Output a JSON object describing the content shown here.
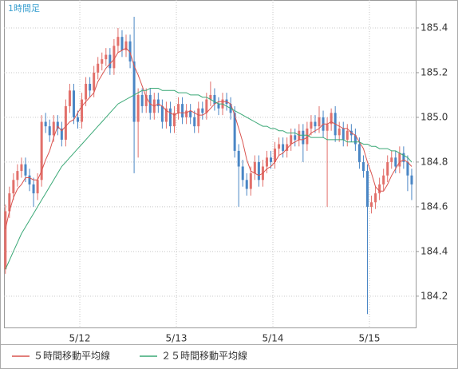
{
  "chart_data": {
    "type": "candlestick",
    "label": "1時間足",
    "x": [
      0,
      1,
      2,
      3,
      4,
      5,
      6,
      7,
      8,
      9,
      10,
      11,
      12,
      13,
      14,
      15,
      16,
      17,
      18,
      19,
      20,
      21,
      22,
      23,
      24,
      25,
      26,
      27,
      28,
      29,
      30,
      31,
      32,
      33,
      34,
      35,
      36,
      37,
      38,
      39,
      40,
      41,
      42,
      43,
      44,
      45,
      46,
      47,
      48,
      49,
      50,
      51,
      52,
      53,
      54,
      55,
      56,
      57,
      58,
      59,
      60,
      61,
      62,
      63,
      64,
      65,
      66,
      67,
      68,
      69,
      70,
      71,
      72,
      73,
      74,
      75,
      76,
      77,
      78,
      79,
      80,
      81,
      82,
      83,
      84,
      85,
      86,
      87,
      88,
      89,
      90,
      91,
      92,
      93,
      94,
      95,
      96,
      97,
      98,
      99,
      100,
      101
    ],
    "candles": [
      [
        184.32,
        184.61,
        184.3,
        184.58
      ],
      [
        184.58,
        184.69,
        184.55,
        184.66
      ],
      [
        184.66,
        184.75,
        184.63,
        184.72
      ],
      [
        184.72,
        184.79,
        184.69,
        184.76
      ],
      [
        184.76,
        184.82,
        184.73,
        184.79
      ],
      [
        184.79,
        184.82,
        184.71,
        184.74
      ],
      [
        184.74,
        184.77,
        184.67,
        184.7
      ],
      [
        184.7,
        184.73,
        184.6,
        184.66
      ],
      [
        184.66,
        184.75,
        184.63,
        184.72
      ],
      [
        184.72,
        185.01,
        184.69,
        184.98
      ],
      [
        184.98,
        185.02,
        184.93,
        184.96
      ],
      [
        184.96,
        184.99,
        184.89,
        184.92
      ],
      [
        184.92,
        185.01,
        184.89,
        184.98
      ],
      [
        184.98,
        185.01,
        184.92,
        184.95
      ],
      [
        184.95,
        184.98,
        184.87,
        184.9
      ],
      [
        184.9,
        185.08,
        184.87,
        185.05
      ],
      [
        185.05,
        185.15,
        185.02,
        185.12
      ],
      [
        185.12,
        185.15,
        184.97,
        185.0
      ],
      [
        185.0,
        185.03,
        184.95,
        184.98
      ],
      [
        184.98,
        185.11,
        184.95,
        185.08
      ],
      [
        185.08,
        185.18,
        185.05,
        185.15
      ],
      [
        185.15,
        185.18,
        185.09,
        185.12
      ],
      [
        185.12,
        185.23,
        185.09,
        185.2
      ],
      [
        185.2,
        185.27,
        185.17,
        185.24
      ],
      [
        185.24,
        185.29,
        185.21,
        185.26
      ],
      [
        185.26,
        185.31,
        185.23,
        185.28
      ],
      [
        185.28,
        185.31,
        185.19,
        185.22
      ],
      [
        185.22,
        185.35,
        185.19,
        185.32
      ],
      [
        185.32,
        185.4,
        185.29,
        185.36
      ],
      [
        185.36,
        185.39,
        185.27,
        185.3
      ],
      [
        185.3,
        185.37,
        185.27,
        185.34
      ],
      [
        185.34,
        185.37,
        185.22,
        185.25
      ],
      [
        185.25,
        185.45,
        184.75,
        184.98
      ],
      [
        184.98,
        185.13,
        184.82,
        185.1
      ],
      [
        185.1,
        185.13,
        185.02,
        185.05
      ],
      [
        185.05,
        185.13,
        185.02,
        185.1
      ],
      [
        185.1,
        185.13,
        184.99,
        185.02
      ],
      [
        185.02,
        185.11,
        184.99,
        185.08
      ],
      [
        185.08,
        185.11,
        185.02,
        185.05
      ],
      [
        185.05,
        185.08,
        184.95,
        184.98
      ],
      [
        184.98,
        185.07,
        184.95,
        185.04
      ],
      [
        185.04,
        185.07,
        184.93,
        184.96
      ],
      [
        184.96,
        185.05,
        184.93,
        185.02
      ],
      [
        185.02,
        185.09,
        184.99,
        185.06
      ],
      [
        185.06,
        185.09,
        184.97,
        185.0
      ],
      [
        185.0,
        185.06,
        184.97,
        185.03
      ],
      [
        185.03,
        185.06,
        184.97,
        185.0
      ],
      [
        185.0,
        185.03,
        184.93,
        184.96
      ],
      [
        184.96,
        185.07,
        184.93,
        185.04
      ],
      [
        185.04,
        185.07,
        184.99,
        185.02
      ],
      [
        185.02,
        185.11,
        184.99,
        185.08
      ],
      [
        185.08,
        185.16,
        185.05,
        185.1
      ],
      [
        185.1,
        185.13,
        185.03,
        185.06
      ],
      [
        185.06,
        185.09,
        185.01,
        185.04
      ],
      [
        185.04,
        185.11,
        185.01,
        185.08
      ],
      [
        185.08,
        185.11,
        185.03,
        185.06
      ],
      [
        185.06,
        185.09,
        184.99,
        185.02
      ],
      [
        185.02,
        185.05,
        184.82,
        184.85
      ],
      [
        184.85,
        184.88,
        184.6,
        184.78
      ],
      [
        184.78,
        184.81,
        184.69,
        184.72
      ],
      [
        184.72,
        184.75,
        184.65,
        184.68
      ],
      [
        184.68,
        184.78,
        184.65,
        184.75
      ],
      [
        184.75,
        184.83,
        184.72,
        184.8
      ],
      [
        184.8,
        184.83,
        184.69,
        184.72
      ],
      [
        184.72,
        184.81,
        184.69,
        184.78
      ],
      [
        184.78,
        184.85,
        184.75,
        184.82
      ],
      [
        184.82,
        184.85,
        184.77,
        184.8
      ],
      [
        184.8,
        184.89,
        184.77,
        184.86
      ],
      [
        184.86,
        184.91,
        184.83,
        184.88
      ],
      [
        184.88,
        184.91,
        184.82,
        184.85
      ],
      [
        184.85,
        184.91,
        184.82,
        184.88
      ],
      [
        184.88,
        184.95,
        184.85,
        184.92
      ],
      [
        184.92,
        184.95,
        184.87,
        184.9
      ],
      [
        184.9,
        184.97,
        184.87,
        184.94
      ],
      [
        184.94,
        184.97,
        184.8,
        184.88
      ],
      [
        184.88,
        184.98,
        184.85,
        184.95
      ],
      [
        184.95,
        185.01,
        184.92,
        184.98
      ],
      [
        184.98,
        185.01,
        184.93,
        184.96
      ],
      [
        184.96,
        185.05,
        184.93,
        185.0
      ],
      [
        185.0,
        185.03,
        184.91,
        184.94
      ],
      [
        184.94,
        185.0,
        184.6,
        184.97
      ],
      [
        184.97,
        185.04,
        184.94,
        185.02
      ],
      [
        185.02,
        185.05,
        184.89,
        184.92
      ],
      [
        184.92,
        184.98,
        184.89,
        184.95
      ],
      [
        184.95,
        184.98,
        184.87,
        184.9
      ],
      [
        184.9,
        184.97,
        184.87,
        184.94
      ],
      [
        184.94,
        184.97,
        184.89,
        184.92
      ],
      [
        184.92,
        184.95,
        184.85,
        184.88
      ],
      [
        184.88,
        184.91,
        184.77,
        184.8
      ],
      [
        184.8,
        184.83,
        184.73,
        184.76
      ],
      [
        184.76,
        184.79,
        184.12,
        184.6
      ],
      [
        184.6,
        184.65,
        184.57,
        184.62
      ],
      [
        184.62,
        184.69,
        184.59,
        184.66
      ],
      [
        184.66,
        184.73,
        184.63,
        184.7
      ],
      [
        184.7,
        184.77,
        184.67,
        184.74
      ],
      [
        184.74,
        184.83,
        184.71,
        184.8
      ],
      [
        184.8,
        184.85,
        184.77,
        184.82
      ],
      [
        184.82,
        184.85,
        184.75,
        184.78
      ],
      [
        184.78,
        184.87,
        184.75,
        184.84
      ],
      [
        184.84,
        184.87,
        184.77,
        184.8
      ],
      [
        184.8,
        184.83,
        184.67,
        184.74
      ],
      [
        184.74,
        184.77,
        184.63,
        184.7
      ]
    ],
    "up_color": "#e2706b",
    "down_color": "#4a86c5",
    "series": [
      {
        "name": "５時間移動平均線",
        "color": "#d9534f",
        "values": [
          184.5,
          184.58,
          184.64,
          184.68,
          184.7,
          184.73,
          184.73,
          184.72,
          184.72,
          184.76,
          184.81,
          184.85,
          184.91,
          184.96,
          184.94,
          184.96,
          184.98,
          184.99,
          185.02,
          185.05,
          185.07,
          185.09,
          185.11,
          185.16,
          185.19,
          185.22,
          185.24,
          185.26,
          185.29,
          185.3,
          185.31,
          185.29,
          185.23,
          185.19,
          185.14,
          185.09,
          185.06,
          185.05,
          185.06,
          185.05,
          185.03,
          185.02,
          185.01,
          185.02,
          185.02,
          185.02,
          185.03,
          185.02,
          185.01,
          185.01,
          185.02,
          185.04,
          185.06,
          185.07,
          185.07,
          185.07,
          185.06,
          185.01,
          184.95,
          184.89,
          184.81,
          184.76,
          184.75,
          184.74,
          184.75,
          184.77,
          184.78,
          184.8,
          184.83,
          184.84,
          184.86,
          184.88,
          184.89,
          184.9,
          184.9,
          184.91,
          184.93,
          184.94,
          184.95,
          184.97,
          184.97,
          184.98,
          184.97,
          184.96,
          184.95,
          184.95,
          184.93,
          184.92,
          184.89,
          184.86,
          184.8,
          184.75,
          184.69,
          184.67,
          184.67,
          184.7,
          184.74,
          184.77,
          184.8,
          184.81,
          184.8,
          184.78
        ]
      },
      {
        "name": "２５時間移動平均線",
        "color": "#3aa876",
        "values": [
          184.32,
          184.36,
          184.4,
          184.44,
          184.48,
          184.51,
          184.54,
          184.57,
          184.6,
          184.63,
          184.66,
          184.69,
          184.72,
          184.75,
          184.78,
          184.8,
          184.82,
          184.84,
          184.86,
          184.88,
          184.9,
          184.92,
          184.94,
          184.96,
          184.98,
          185.0,
          185.02,
          185.04,
          185.06,
          185.07,
          185.08,
          185.09,
          185.1,
          185.11,
          185.12,
          185.12,
          185.13,
          185.13,
          185.13,
          185.12,
          185.12,
          185.12,
          185.12,
          185.11,
          185.11,
          185.11,
          185.1,
          185.1,
          185.1,
          185.09,
          185.09,
          185.08,
          185.07,
          185.06,
          185.06,
          185.05,
          185.04,
          185.03,
          185.02,
          185.01,
          185.0,
          184.99,
          184.98,
          184.97,
          184.96,
          184.96,
          184.95,
          184.95,
          184.94,
          184.94,
          184.93,
          184.93,
          184.93,
          184.92,
          184.92,
          184.92,
          184.91,
          184.91,
          184.91,
          184.91,
          184.9,
          184.9,
          184.9,
          184.9,
          184.9,
          184.89,
          184.89,
          184.89,
          184.89,
          184.88,
          184.88,
          184.87,
          184.87,
          184.86,
          184.86,
          184.86,
          184.85,
          184.85,
          184.84,
          184.83,
          184.82,
          184.8
        ]
      }
    ],
    "xlim": [
      -0.35,
      102
    ],
    "xticks": [
      {
        "value": 18.5,
        "label": "5/12"
      },
      {
        "value": 42.5,
        "label": "5/13"
      },
      {
        "value": 66.5,
        "label": "5/14"
      },
      {
        "value": 90.5,
        "label": "5/15"
      }
    ],
    "ylim": [
      184.06,
      185.525
    ],
    "yticks": [
      184.2,
      184.4,
      184.6,
      184.8,
      {
        "value": 185,
        "label": "185.0"
      },
      185.2,
      185.4
    ],
    "grid": true
  }
}
